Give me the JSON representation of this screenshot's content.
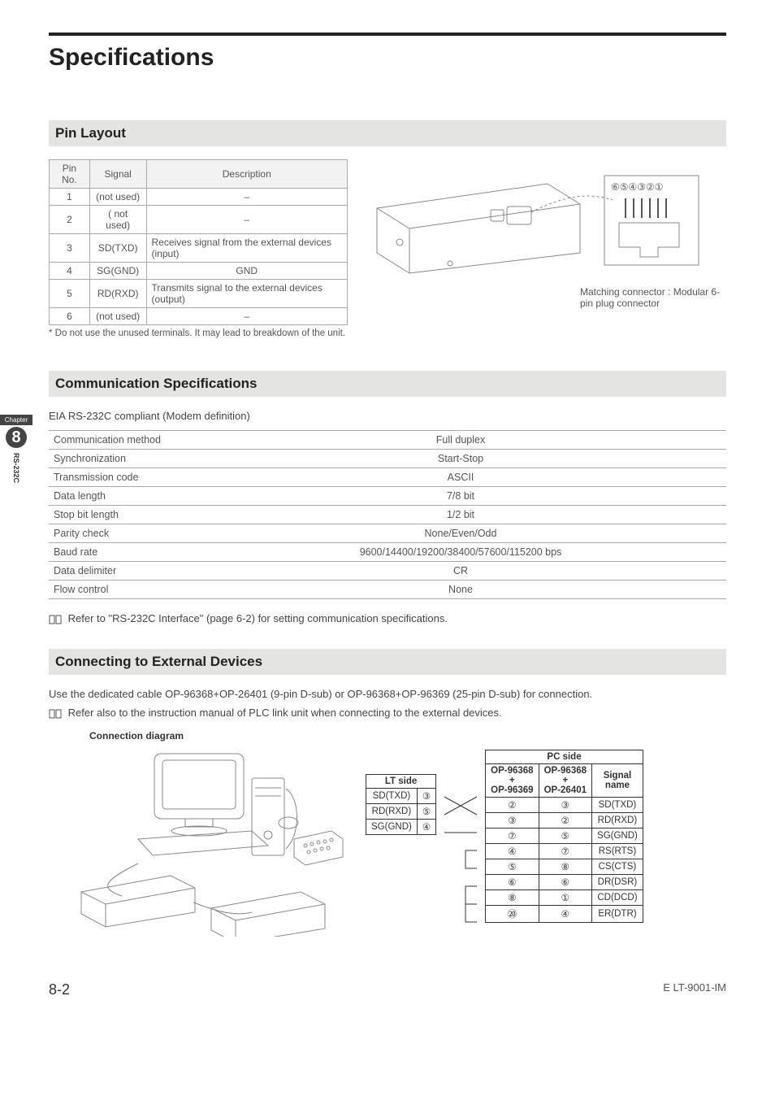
{
  "page": {
    "title": "Specifications",
    "page_number": "8-2",
    "doc_code": "E LT-9001-IM"
  },
  "side_tab": {
    "chapter_label": "Chapter",
    "chapter_num": "8",
    "side_text": "RS-232C"
  },
  "pin_layout": {
    "heading": "Pin Layout",
    "columns": [
      "Pin No.",
      "Signal",
      "Description"
    ],
    "rows": [
      [
        "1",
        "(not used)",
        "–"
      ],
      [
        "2",
        "( not used)",
        "–"
      ],
      [
        "3",
        "SD(TXD)",
        "Receives signal from the external devices (input)"
      ],
      [
        "4",
        "SG(GND)",
        "GND"
      ],
      [
        "5",
        "RD(RXD)",
        "Transmits signal to the external devices (output)"
      ],
      [
        "6",
        "(not used)",
        "–"
      ]
    ],
    "footnote": "* Do not use the unused terminals. It may lead to breakdown of the unit.",
    "connector_caption": "Matching connector : Modular 6-pin plug connector",
    "pin_badges": [
      "⑥",
      "⑤",
      "④",
      "③",
      "②",
      "①"
    ]
  },
  "comm_spec": {
    "heading": "Communication Specifications",
    "intro": "EIA RS-232C compliant (Modem definition)",
    "rows": [
      [
        "Communication method",
        "Full duplex"
      ],
      [
        "Synchronization",
        "Start-Stop"
      ],
      [
        "Transmission code",
        "ASCII"
      ],
      [
        "Data length",
        "7/8 bit"
      ],
      [
        "Stop bit length",
        "1/2 bit"
      ],
      [
        "Parity check",
        "None/Even/Odd"
      ],
      [
        "Baud rate",
        "9600/14400/19200/38400/57600/115200 bps"
      ],
      [
        "Data delimiter",
        "CR"
      ],
      [
        "Flow control",
        "None"
      ]
    ],
    "refer": "Refer to \"RS-232C Interface\" (page 6-2) for setting communication specifications."
  },
  "connect": {
    "heading": "Connecting to External Devices",
    "intro": "Use the dedicated cable OP-96368+OP-26401 (9-pin D-sub) or OP-96368+OP-96369 (25-pin D-sub) for connection.",
    "refer": "Refer also to the instruction manual of PLC link unit when connecting to the external devices.",
    "diagram_label": "Connection diagram",
    "lt_side": {
      "header": "LT side",
      "rows": [
        [
          "SD(TXD)",
          "③"
        ],
        [
          "RD(RXD)",
          "⑤"
        ],
        [
          "SG(GND)",
          "④"
        ]
      ]
    },
    "pc_side": {
      "top_header": "PC side",
      "col_headers_line1": [
        "OP-96368",
        "OP-96368",
        ""
      ],
      "plus": "+",
      "col_headers_line2": [
        "OP-96369",
        "OP-26401",
        "Signal name"
      ],
      "rows": [
        [
          "②",
          "③",
          "SD(TXD)"
        ],
        [
          "③",
          "②",
          "RD(RXD)"
        ],
        [
          "⑦",
          "⑤",
          "SG(GND)"
        ],
        [
          "④",
          "⑦",
          "RS(RTS)"
        ],
        [
          "⑤",
          "⑧",
          "CS(CTS)"
        ],
        [
          "⑥",
          "⑥",
          "DR(DSR)"
        ],
        [
          "⑧",
          "①",
          "CD(DCD)"
        ],
        [
          "⑳",
          "④",
          "ER(DTR)"
        ]
      ]
    }
  },
  "style": {
    "heading_bg": "#e4e4e2",
    "border_color": "#aaaaaa",
    "text_color": "#555555",
    "table_border_dark": "#333333"
  }
}
